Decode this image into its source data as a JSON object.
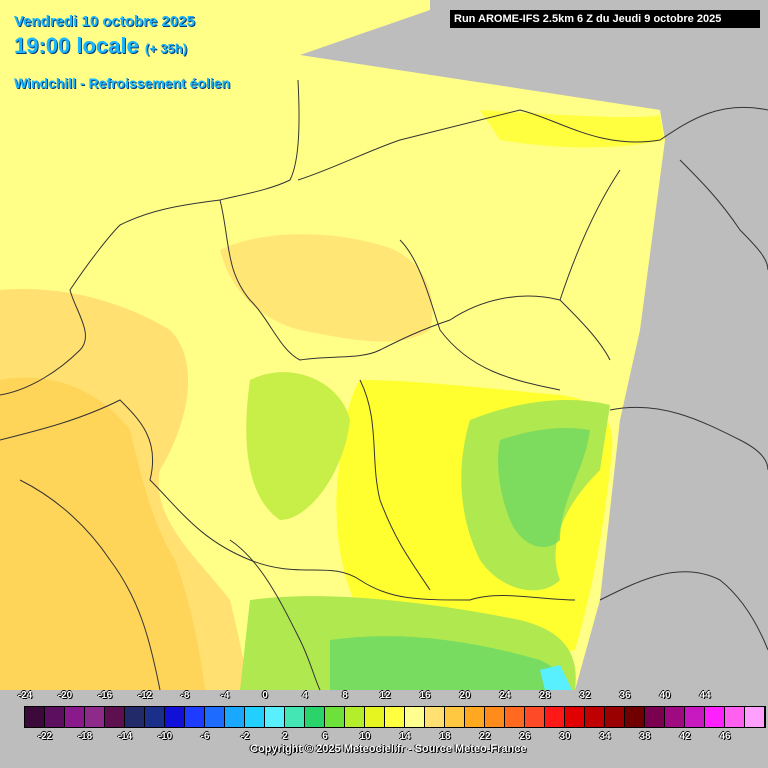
{
  "header": {
    "date": "Vendredi 10 octobre 2025",
    "time": "19:00 locale",
    "lead": "(+ 35h)",
    "parameter": "Windchill - Refroissement éolien",
    "run": "Run AROME-IFS 2.5km 6 Z du Jeudi 9 octobre 2025"
  },
  "legend": {
    "top_labels": [
      "-24",
      "-20",
      "-16",
      "-12",
      "-8",
      "-4",
      "0",
      "4",
      "8",
      "12",
      "16",
      "20",
      "24",
      "28",
      "32",
      "36",
      "40",
      "44"
    ],
    "bottom_labels": [
      "-22",
      "-18",
      "-14",
      "-10",
      "-6",
      "-2",
      "2",
      "6",
      "10",
      "14",
      "18",
      "22",
      "26",
      "30",
      "34",
      "38",
      "42",
      "46"
    ],
    "colors": [
      "#3b0a3a",
      "#5c0f5e",
      "#8a1a8c",
      "#8e2a8a",
      "#5d0f4f",
      "#232a6a",
      "#1a2f8a",
      "#1010d8",
      "#1e3cff",
      "#1e6cff",
      "#1aa8ff",
      "#22d0ff",
      "#58f0ff",
      "#44e6b4",
      "#2ad46a",
      "#6ee03a",
      "#b4ee2a",
      "#e6f520",
      "#ffff40",
      "#ffff90",
      "#ffe070",
      "#ffc840",
      "#ffa820",
      "#ff8c1a",
      "#ff6a20",
      "#ff4a28",
      "#ff1818",
      "#e00000",
      "#c00000",
      "#9a0000",
      "#700000",
      "#7a0050",
      "#a00a80",
      "#c818c0",
      "#ff20ff",
      "#ff60f0",
      "#ffa0ff"
    ]
  },
  "footer": {
    "copyright": "Copyright © 2025 Meteociel.fr - Source Meteo-France"
  },
  "colors": {
    "outside": "#bdbdbd",
    "base_yellow": "#ffff88",
    "light_orange": "#ffe070",
    "orange": "#ffd050",
    "bright_yellow": "#ffff30",
    "yellow_green": "#d8f040",
    "green": "#90e060",
    "title_blue": "#19b5ff"
  }
}
